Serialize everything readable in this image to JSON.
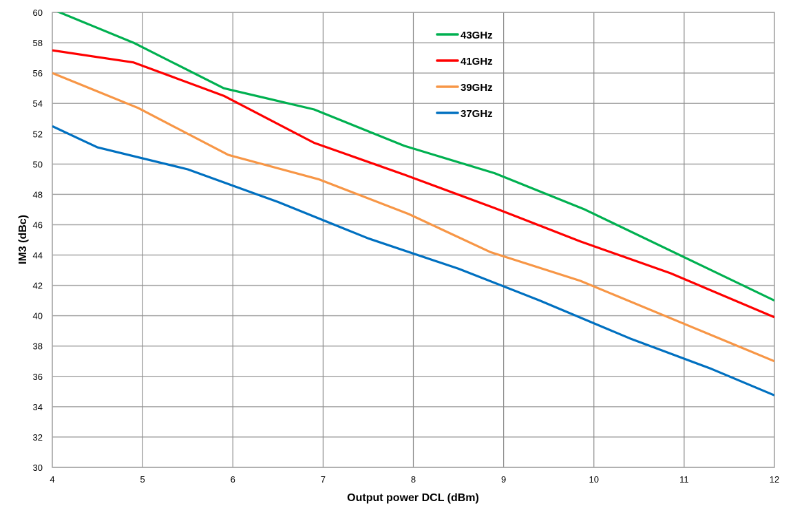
{
  "chart_data": {
    "type": "line",
    "title": "",
    "xlabel": "Output power DCL (dBm)",
    "ylabel": "IM3 (dBc)",
    "xlim": [
      4,
      12
    ],
    "ylim": [
      30,
      60
    ],
    "xticks": [
      4,
      5,
      6,
      7,
      8,
      9,
      10,
      11,
      12
    ],
    "yticks": [
      30,
      32,
      34,
      36,
      38,
      40,
      42,
      44,
      46,
      48,
      50,
      52,
      54,
      56,
      58,
      60
    ],
    "grid": true,
    "legend_position": "top-center",
    "series": [
      {
        "name": "43GHz",
        "color": "#00b050",
        "x": [
          4,
          4.9,
          5.9,
          6.9,
          7.9,
          8.9,
          9.9,
          12
        ],
        "y": [
          60.2,
          58.0,
          55.0,
          53.6,
          51.2,
          49.4,
          47.0,
          41.0
        ]
      },
      {
        "name": "41GHz",
        "color": "#ff0000",
        "x": [
          4,
          4.9,
          5.9,
          6.9,
          7.9,
          8.9,
          9.85,
          10.85,
          12
        ],
        "y": [
          57.5,
          56.7,
          54.5,
          51.4,
          49.3,
          47.1,
          44.9,
          42.8,
          39.9
        ]
      },
      {
        "name": "39GHz",
        "color": "#f79646",
        "x": [
          4,
          4.95,
          5.95,
          6.95,
          7.95,
          8.85,
          9.85,
          12
        ],
        "y": [
          56.0,
          53.7,
          50.6,
          49.0,
          46.7,
          44.2,
          42.3,
          37.0
        ]
      },
      {
        "name": "37GHz",
        "color": "#0070c0",
        "x": [
          4,
          4.5,
          5.5,
          6.5,
          7.5,
          8.5,
          9.4,
          10.4,
          11.3,
          12
        ],
        "y": [
          52.5,
          51.1,
          49.65,
          47.5,
          45.1,
          43.1,
          41.0,
          38.5,
          36.5,
          34.75
        ]
      }
    ]
  }
}
